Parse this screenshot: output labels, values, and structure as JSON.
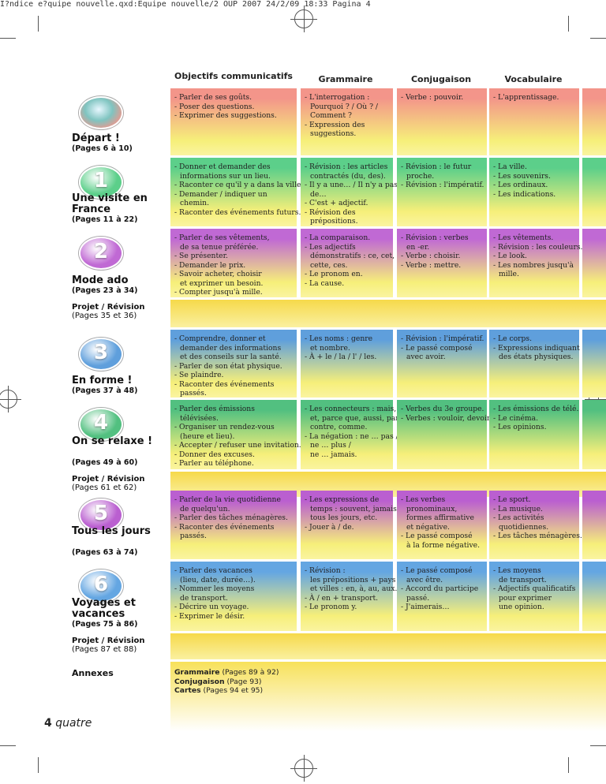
{
  "header": "I?ndice e?quipe nouvelle.qxd:Equipe nouvelle/2 OUP 2007   24/2/09   18:33   Pagina 4",
  "columns": {
    "objectifs": "Objectifs communicatifs",
    "grammaire": "Grammaire",
    "conjugaison": "Conjugaison",
    "vocabulaire": "Vocabulaire"
  },
  "units": [
    {
      "title": "Départ !",
      "pages": "(Pages 6 à 10)",
      "number": "",
      "objectifs": [
        "- Parler de ses goûts.",
        "- Poser des questions.",
        "- Exprimer des suggestions."
      ],
      "grammaire": [
        "- L'interrogation :",
        "  Pourquoi ? / Où ? /",
        "  Comment ?",
        "- Expression des",
        "  suggestions."
      ],
      "conjugaison": [
        "- Verbe : pouvoir."
      ],
      "vocabulaire": [
        "- L'apprentissage."
      ]
    },
    {
      "title": "Une visite en France",
      "pages": "(Pages 11 à 22)",
      "number": "1",
      "objectifs": [
        "- Donner et demander des",
        "  informations sur un lieu.",
        "- Raconter ce qu'il y a dans la ville.",
        "- Demander / indiquer un",
        "  chemin.",
        "- Raconter des événements futurs."
      ],
      "grammaire": [
        "- Révision : les articles",
        "  contractés (du, des).",
        "- Il y a une… / Il n'y a pas",
        "  de…",
        "- C'est + adjectif.",
        "- Révision des",
        "  prépositions."
      ],
      "conjugaison": [
        "- Révision : le futur",
        "  proche.",
        "- Révision : l'impératif."
      ],
      "vocabulaire": [
        "- La ville.",
        "- Les souvenirs.",
        "- Les ordinaux.",
        "- Les indications."
      ]
    },
    {
      "title": "Mode ado",
      "pages": "(Pages 23 à 34)",
      "number": "2",
      "objectifs": [
        "- Parler de ses vêtements,",
        "  de sa tenue préférée.",
        "- Se présenter.",
        "- Demander le prix.",
        "- Savoir acheter, choisir",
        "  et exprimer un besoin.",
        "- Compter jusqu'à mille."
      ],
      "grammaire": [
        "- La comparaison.",
        "- Les adjectifs",
        "  démonstratifs : ce, cet,",
        "  cette, ces.",
        "- Le pronom en.",
        "- La cause."
      ],
      "conjugaison": [
        "- Révision : verbes",
        "  en -er.",
        "- Verbe : choisir.",
        "- Verbe : mettre."
      ],
      "vocabulaire": [
        "- Les vêtements.",
        "- Révision : les couleurs.",
        "- Le look.",
        "- Les nombres jusqu'à",
        "  mille."
      ]
    },
    {
      "title": "En forme !",
      "pages": "(Pages 37 à 48)",
      "number": "3",
      "objectifs": [
        "- Comprendre, donner et",
        "  demander des informations",
        "  et des conseils sur la santé.",
        "- Parler de son état physique.",
        "- Se plaindre.",
        "- Raconter des événements",
        "  passés."
      ],
      "grammaire": [
        "- Les noms : genre",
        "  et nombre.",
        "- À + le / la / l' / les."
      ],
      "conjugaison": [
        "- Révision : l'impératif.",
        "- Le passé composé",
        "  avec avoir."
      ],
      "vocabulaire": [
        "- Le corps.",
        "- Expressions indiquant",
        "  des états physiques."
      ]
    },
    {
      "title": "On se relaxe !",
      "pages": "(Pages 49 à 60)",
      "number": "4",
      "objectifs": [
        "- Parler des émissions",
        "  télévisées.",
        "- Organiser un rendez-vous",
        "  (heure et lieu).",
        "- Accepter / refuser une invitation.",
        "- Donner des excuses.",
        "- Parler au téléphone."
      ],
      "grammaire": [
        "- Les connecteurs : mais,",
        "  et, parce que, aussi, par",
        "  contre, comme.",
        "- La négation : ne … pas /",
        "  ne … plus /",
        "  ne … jamais."
      ],
      "conjugaison": [
        "- Verbes du 3e groupe.",
        "- Verbes : vouloir, devoir."
      ],
      "vocabulaire": [
        "- Les émissions de télé.",
        "- Le cinéma.",
        "- Les opinions."
      ]
    },
    {
      "title": "Tous les jours",
      "pages": "(Pages 63 à 74)",
      "number": "5",
      "objectifs": [
        "- Parler de la vie quotidienne",
        "  de quelqu'un.",
        "- Parler des tâches ménagères.",
        "- Raconter des événements",
        "  passés."
      ],
      "grammaire": [
        "- Les expressions de",
        "  temps : souvent, jamais,",
        "  tous les jours, etc.",
        "- Jouer à / de."
      ],
      "conjugaison": [
        "- Les verbes",
        "  pronominaux,",
        "  formes affirmative",
        "  et négative.",
        "- Le passé composé",
        "  à la forme négative."
      ],
      "vocabulaire": [
        "- Le sport.",
        "- La musique.",
        "- Les activités",
        "  quotidiennes.",
        "- Les tâches ménagères."
      ]
    },
    {
      "title": "Voyages et vacances",
      "pages": "(Pages 75 à 86)",
      "number": "6",
      "objectifs": [
        "- Parler des vacances",
        "  (lieu, date, durée…).",
        "- Nommer les moyens",
        "  de transport.",
        "- Décrire un voyage.",
        "- Exprimer le désir."
      ],
      "grammaire": [
        "- Révision :",
        "  les prépositions + pays",
        "  et villes : en, à, au, aux.",
        "- À / en + transport.",
        "- Le pronom y."
      ],
      "conjugaison": [
        "- Le passé composé",
        "  avec être.",
        "- Accord du participe",
        "  passé.",
        "- J'aimerais…"
      ],
      "vocabulaire": [
        "- Les moyens",
        "  de transport.",
        "- Adjectifs qualificatifs",
        "  pour exprimer",
        "  une opinion."
      ]
    }
  ],
  "projets": [
    {
      "title": "Projet / Révision",
      "pages": "(Pages 35 et 36)"
    },
    {
      "title": "Projet / Révision",
      "pages": "(Pages 61 et 62)"
    },
    {
      "title": "Projet / Révision",
      "pages": "(Pages 87 et 88)"
    }
  ],
  "annexes": {
    "title": "Annexes",
    "items": [
      {
        "label": "Grammaire",
        "pages": "(Pages 89 à 92)"
      },
      {
        "label": "Conjugaison",
        "pages": "(Page 93)"
      },
      {
        "label": "Cartes",
        "pages": "(Pages 94 et 95)"
      }
    ]
  },
  "footer": {
    "number": "4",
    "word": "quatre"
  },
  "colors": {
    "unit0": "#f3958a",
    "unit1": "#5ccf8a",
    "unit2": "#c069d4",
    "unit3": "#5f9fdc",
    "unit4": "#52c080",
    "unit5": "#ba5fd0",
    "unit6": "#64a6e2",
    "band": "#f8de55"
  }
}
